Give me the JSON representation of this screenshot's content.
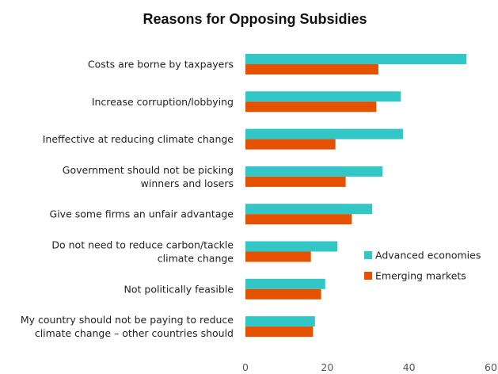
{
  "chart_data": {
    "type": "bar",
    "orientation": "horizontal",
    "title": "Reasons for Opposing Subsidies",
    "xlabel": "",
    "ylabel": "",
    "categories": [
      [
        "Costs are borne by taxpayers"
      ],
      [
        "Increase corruption/lobbying"
      ],
      [
        "Ineffective at reducing climate change"
      ],
      [
        "Government should not be picking",
        "winners and losers"
      ],
      [
        "Give some firms an unfair advantage"
      ],
      [
        "Do not need to reduce carbon/tackle",
        "climate change"
      ],
      [
        "Not politically feasible"
      ],
      [
        "My country should not be paying to reduce",
        "climate change – other countries should"
      ]
    ],
    "series": [
      {
        "name": "Advanced economies",
        "color": "#33C6C6",
        "values": [
          54,
          38,
          38.5,
          33.5,
          31,
          22.5,
          19.5,
          17
        ]
      },
      {
        "name": "Emerging markets",
        "color": "#E65100",
        "values": [
          32.5,
          32,
          22,
          24.5,
          26,
          16,
          18.5,
          16.5
        ]
      }
    ],
    "xlim": [
      0,
      60
    ],
    "xticks": [
      0,
      20,
      40,
      60
    ],
    "grid": false,
    "legend_position": "right"
  }
}
